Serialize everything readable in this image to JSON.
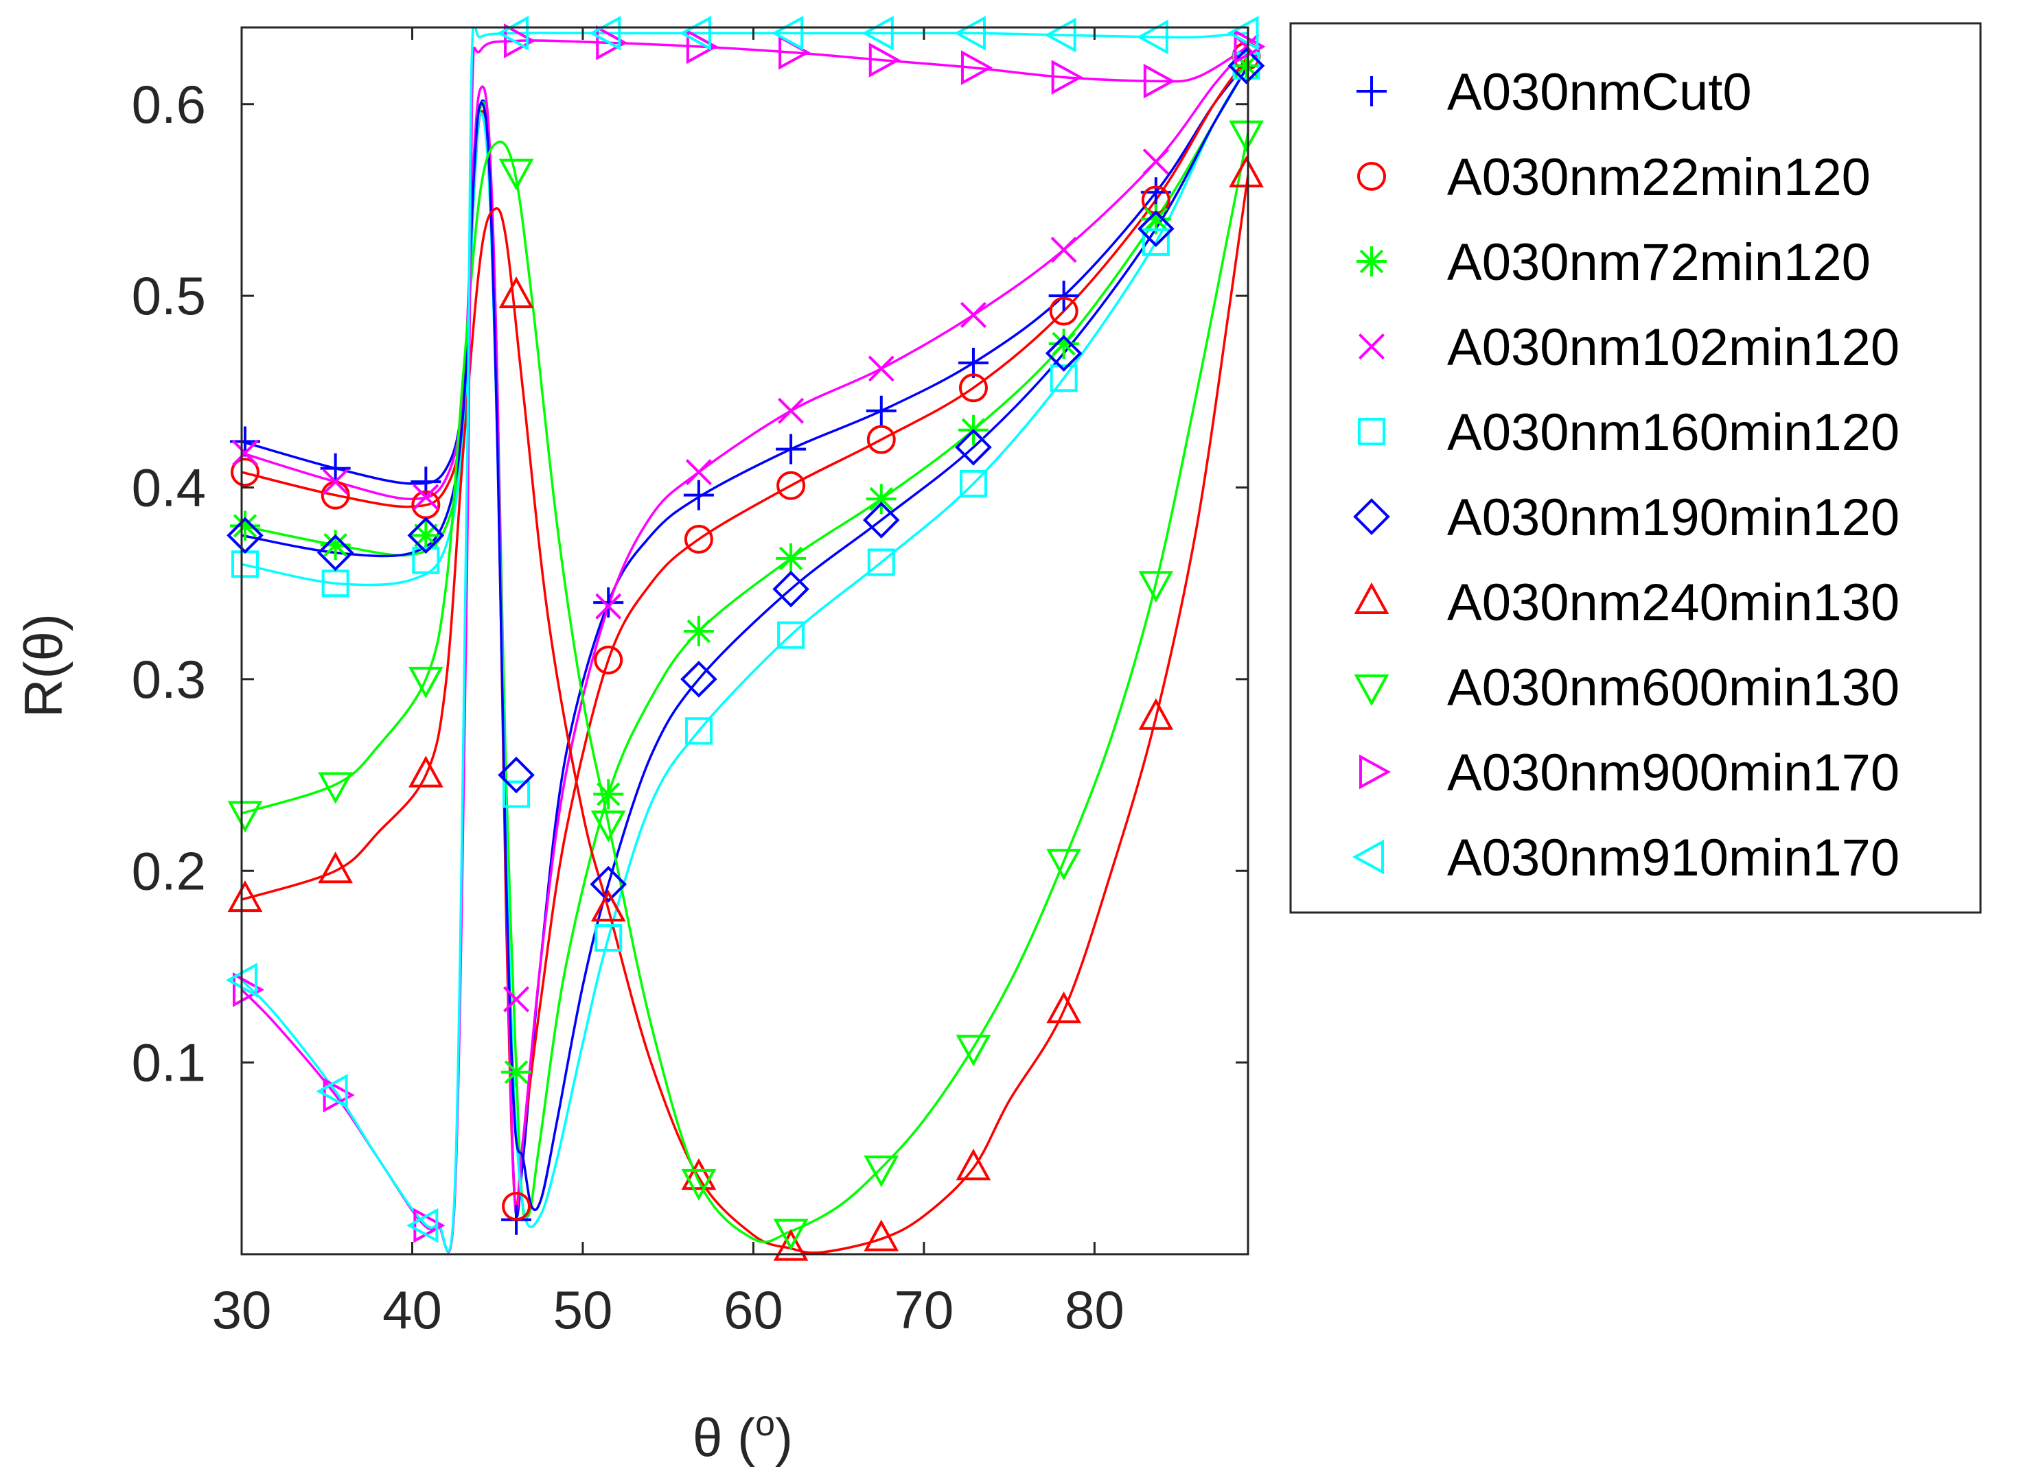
{
  "chart_data": {
    "type": "line",
    "title": "",
    "xlabel": "θ (",
    "xlabel_sup": "o",
    "xlabel_end": ")",
    "ylabel": "R(θ)",
    "xlim": [
      30,
      89
    ],
    "ylim": [
      0,
      0.64
    ],
    "xticks": [
      30,
      40,
      50,
      60,
      70,
      80
    ],
    "yticks": [
      0.1,
      0.2,
      0.3,
      0.4,
      0.5,
      0.6
    ],
    "xtick_labels": [
      "30",
      "40",
      "50",
      "60",
      "70",
      "80"
    ],
    "ytick_labels": [
      "0.1",
      "0.2",
      "0.3",
      "0.4",
      "0.5",
      "0.6"
    ],
    "legend_position": "outside-right",
    "grid": false,
    "marker_x": [
      30.2,
      35.5,
      40.8,
      46.1,
      51.5,
      56.8,
      62.2,
      67.5,
      72.9,
      78.2,
      83.6,
      88.9
    ],
    "series": [
      {
        "name": "A030nmCut0",
        "color": "#0000ff",
        "marker": "plus",
        "markers": [
          0.424,
          0.41,
          0.403,
          0.018,
          0.34,
          0.396,
          0.42,
          0.44,
          0.465,
          0.5,
          0.554,
          0.62
        ],
        "curve": [
          [
            30,
            0.424
          ],
          [
            35.5,
            0.41
          ],
          [
            40,
            0.402
          ],
          [
            42,
            0.41
          ],
          [
            43,
            0.45
          ],
          [
            43.6,
            0.56
          ],
          [
            44,
            0.6
          ],
          [
            44.5,
            0.58
          ],
          [
            45,
            0.45
          ],
          [
            45.5,
            0.2
          ],
          [
            46,
            0.03
          ],
          [
            46.5,
            0.05
          ],
          [
            47.5,
            0.15
          ],
          [
            49,
            0.26
          ],
          [
            51.5,
            0.34
          ],
          [
            54,
            0.375
          ],
          [
            56.8,
            0.395
          ],
          [
            62.2,
            0.42
          ],
          [
            67.5,
            0.44
          ],
          [
            72.9,
            0.465
          ],
          [
            78.2,
            0.5
          ],
          [
            83.6,
            0.554
          ],
          [
            87,
            0.6
          ],
          [
            89,
            0.622
          ]
        ]
      },
      {
        "name": "A030nm22min120",
        "color": "#ff0000",
        "marker": "circle",
        "markers": [
          0.408,
          0.396,
          0.391,
          0.025,
          0.31,
          0.373,
          0.401,
          0.425,
          0.452,
          0.492,
          0.55,
          0.625
        ],
        "curve": [
          [
            30,
            0.408
          ],
          [
            35.5,
            0.396
          ],
          [
            40,
            0.39
          ],
          [
            42,
            0.4
          ],
          [
            43,
            0.44
          ],
          [
            43.6,
            0.55
          ],
          [
            44,
            0.595
          ],
          [
            44.5,
            0.57
          ],
          [
            45,
            0.43
          ],
          [
            45.5,
            0.18
          ],
          [
            46,
            0.03
          ],
          [
            46.5,
            0.06
          ],
          [
            47.5,
            0.13
          ],
          [
            49,
            0.22
          ],
          [
            51.5,
            0.31
          ],
          [
            54,
            0.35
          ],
          [
            56.8,
            0.373
          ],
          [
            62.2,
            0.401
          ],
          [
            67.5,
            0.425
          ],
          [
            72.9,
            0.452
          ],
          [
            78.2,
            0.492
          ],
          [
            83.6,
            0.55
          ],
          [
            87,
            0.6
          ],
          [
            89,
            0.625
          ]
        ]
      },
      {
        "name": "A030nm72min120",
        "color": "#00ff00",
        "marker": "asterisk",
        "markers": [
          0.38,
          0.37,
          0.375,
          0.095,
          0.24,
          0.325,
          0.363,
          0.394,
          0.43,
          0.475,
          0.54,
          0.62
        ],
        "curve": [
          [
            30,
            0.38
          ],
          [
            35.5,
            0.37
          ],
          [
            40,
            0.365
          ],
          [
            42,
            0.38
          ],
          [
            43,
            0.43
          ],
          [
            43.6,
            0.55
          ],
          [
            44,
            0.598
          ],
          [
            44.5,
            0.58
          ],
          [
            45,
            0.45
          ],
          [
            45.5,
            0.25
          ],
          [
            46.3,
            0.05
          ],
          [
            46.8,
            0.02
          ],
          [
            47.5,
            0.06
          ],
          [
            49,
            0.15
          ],
          [
            51.5,
            0.24
          ],
          [
            54,
            0.29
          ],
          [
            56.8,
            0.325
          ],
          [
            62.2,
            0.363
          ],
          [
            67.5,
            0.394
          ],
          [
            72.9,
            0.43
          ],
          [
            78.2,
            0.475
          ],
          [
            83.6,
            0.54
          ],
          [
            87,
            0.59
          ],
          [
            89,
            0.62
          ]
        ]
      },
      {
        "name": "A030nm102min120",
        "color": "#ff00ff",
        "marker": "cross",
        "markers": [
          0.418,
          0.403,
          0.395,
          0.133,
          0.338,
          0.408,
          0.44,
          0.462,
          0.49,
          0.524,
          0.57,
          0.63
        ],
        "curve": [
          [
            30,
            0.418
          ],
          [
            35.5,
            0.403
          ],
          [
            40,
            0.394
          ],
          [
            42,
            0.405
          ],
          [
            43,
            0.45
          ],
          [
            43.6,
            0.57
          ],
          [
            44,
            0.608
          ],
          [
            44.5,
            0.585
          ],
          [
            45,
            0.45
          ],
          [
            45.5,
            0.2
          ],
          [
            46,
            0.03
          ],
          [
            46.5,
            0.06
          ],
          [
            47.5,
            0.15
          ],
          [
            49,
            0.25
          ],
          [
            51.5,
            0.338
          ],
          [
            54,
            0.385
          ],
          [
            56.8,
            0.408
          ],
          [
            62.2,
            0.44
          ],
          [
            67.5,
            0.462
          ],
          [
            72.9,
            0.49
          ],
          [
            78.2,
            0.524
          ],
          [
            83.6,
            0.57
          ],
          [
            87,
            0.61
          ],
          [
            89,
            0.63
          ]
        ]
      },
      {
        "name": "A030nm160min120",
        "color": "#00ffff",
        "marker": "square",
        "markers": [
          0.36,
          0.35,
          0.362,
          0.24,
          0.165,
          0.273,
          0.323,
          0.361,
          0.402,
          0.457,
          0.528,
          0.62
        ],
        "curve": [
          [
            30,
            0.36
          ],
          [
            35.5,
            0.35
          ],
          [
            40,
            0.352
          ],
          [
            42,
            0.37
          ],
          [
            43,
            0.43
          ],
          [
            43.6,
            0.55
          ],
          [
            44,
            0.595
          ],
          [
            44.5,
            0.56
          ],
          [
            45,
            0.42
          ],
          [
            45.5,
            0.22
          ],
          [
            46,
            0.08
          ],
          [
            46.6,
            0.02
          ],
          [
            47.5,
            0.02
          ],
          [
            48.5,
            0.05
          ],
          [
            50,
            0.11
          ],
          [
            51.5,
            0.165
          ],
          [
            54,
            0.235
          ],
          [
            56.8,
            0.273
          ],
          [
            62.2,
            0.323
          ],
          [
            67.5,
            0.361
          ],
          [
            72.9,
            0.402
          ],
          [
            78.2,
            0.457
          ],
          [
            83.6,
            0.528
          ],
          [
            87,
            0.59
          ],
          [
            89,
            0.62
          ]
        ]
      },
      {
        "name": "A030nm190min120",
        "color": "#0000ff",
        "marker": "diamond",
        "markers": [
          0.375,
          0.366,
          0.375,
          0.25,
          0.193,
          0.3,
          0.347,
          0.383,
          0.421,
          0.47,
          0.535,
          0.62
        ],
        "curve": [
          [
            30,
            0.375
          ],
          [
            35.5,
            0.366
          ],
          [
            40,
            0.366
          ],
          [
            42,
            0.385
          ],
          [
            43,
            0.44
          ],
          [
            43.6,
            0.56
          ],
          [
            44,
            0.6
          ],
          [
            44.5,
            0.57
          ],
          [
            45,
            0.42
          ],
          [
            45.5,
            0.2
          ],
          [
            46,
            0.07
          ],
          [
            46.5,
            0.05
          ],
          [
            47,
            0.025
          ],
          [
            47.6,
            0.03
          ],
          [
            48.5,
            0.07
          ],
          [
            50,
            0.14
          ],
          [
            51.5,
            0.193
          ],
          [
            54,
            0.26
          ],
          [
            56.8,
            0.3
          ],
          [
            62.2,
            0.347
          ],
          [
            67.5,
            0.383
          ],
          [
            72.9,
            0.421
          ],
          [
            78.2,
            0.47
          ],
          [
            83.6,
            0.535
          ],
          [
            87,
            0.59
          ],
          [
            89,
            0.62
          ]
        ]
      },
      {
        "name": "A030nm240min130",
        "color": "#ff0000",
        "marker": "triangle-up",
        "markers": [
          0.185,
          0.2,
          0.25,
          0.5,
          0.18,
          0.04,
          0.003,
          0.008,
          0.045,
          0.127,
          0.28,
          0.563
        ],
        "curve": [
          [
            30,
            0.185
          ],
          [
            35.5,
            0.2
          ],
          [
            38,
            0.22
          ],
          [
            40.8,
            0.25
          ],
          [
            42,
            0.3
          ],
          [
            43,
            0.42
          ],
          [
            44,
            0.52
          ],
          [
            44.8,
            0.545
          ],
          [
            45.5,
            0.53
          ],
          [
            46.5,
            0.45
          ],
          [
            48,
            0.33
          ],
          [
            50,
            0.23
          ],
          [
            51.5,
            0.18
          ],
          [
            54,
            0.1
          ],
          [
            56.8,
            0.04
          ],
          [
            60,
            0.01
          ],
          [
            62.2,
            0.003
          ],
          [
            64,
            0.001
          ],
          [
            67.5,
            0.008
          ],
          [
            70,
            0.02
          ],
          [
            72.9,
            0.045
          ],
          [
            75,
            0.08
          ],
          [
            78.2,
            0.127
          ],
          [
            81,
            0.2
          ],
          [
            83.6,
            0.28
          ],
          [
            86,
            0.38
          ],
          [
            88,
            0.5
          ],
          [
            89,
            0.563
          ]
        ]
      },
      {
        "name": "A030nm600min130",
        "color": "#00ff00",
        "marker": "triangle-down",
        "markers": [
          0.23,
          0.245,
          0.3,
          0.565,
          0.225,
          0.038,
          0.012,
          0.045,
          0.108,
          0.205,
          0.35,
          0.585
        ],
        "curve": [
          [
            30,
            0.23
          ],
          [
            35.5,
            0.245
          ],
          [
            38,
            0.265
          ],
          [
            40.8,
            0.3
          ],
          [
            42,
            0.35
          ],
          [
            43,
            0.46
          ],
          [
            44,
            0.555
          ],
          [
            45,
            0.58
          ],
          [
            46,
            0.565
          ],
          [
            47,
            0.5
          ],
          [
            48.5,
            0.38
          ],
          [
            50,
            0.29
          ],
          [
            51.5,
            0.225
          ],
          [
            54,
            0.12
          ],
          [
            56.8,
            0.038
          ],
          [
            60,
            0.008
          ],
          [
            62.2,
            0.012
          ],
          [
            65,
            0.025
          ],
          [
            67.5,
            0.045
          ],
          [
            70,
            0.07
          ],
          [
            72.9,
            0.108
          ],
          [
            75.5,
            0.15
          ],
          [
            78.2,
            0.205
          ],
          [
            81,
            0.27
          ],
          [
            83.6,
            0.35
          ],
          [
            86,
            0.45
          ],
          [
            88,
            0.54
          ],
          [
            89,
            0.585
          ]
        ]
      },
      {
        "name": "A030nm900min170",
        "color": "#ff00ff",
        "marker": "triangle-right",
        "markers": [
          0.138,
          0.083,
          0.015,
          0.633,
          0.632,
          0.63,
          0.627,
          0.623,
          0.619,
          0.614,
          0.612,
          0.63
        ],
        "curve": [
          [
            30,
            0.138
          ],
          [
            32,
            0.12
          ],
          [
            35.5,
            0.083
          ],
          [
            38,
            0.05
          ],
          [
            40.5,
            0.017
          ],
          [
            41.5,
            0.015
          ],
          [
            42.5,
            0.03
          ],
          [
            43.2,
            0.35
          ],
          [
            43.5,
            0.6
          ],
          [
            44,
            0.628
          ],
          [
            46.1,
            0.633
          ],
          [
            51.5,
            0.632
          ],
          [
            56.8,
            0.63
          ],
          [
            62.2,
            0.627
          ],
          [
            67.5,
            0.623
          ],
          [
            72.9,
            0.619
          ],
          [
            78.2,
            0.614
          ],
          [
            83.6,
            0.612
          ],
          [
            86,
            0.614
          ],
          [
            89,
            0.63
          ]
        ]
      },
      {
        "name": "A030nm910min170",
        "color": "#00ffff",
        "marker": "triangle-left",
        "markers": [
          0.143,
          0.085,
          0.015,
          0.637,
          0.637,
          0.637,
          0.637,
          0.637,
          0.637,
          0.636,
          0.635,
          0.637
        ],
        "curve": [
          [
            30,
            0.143
          ],
          [
            32,
            0.125
          ],
          [
            35.5,
            0.085
          ],
          [
            38,
            0.05
          ],
          [
            40.5,
            0.018
          ],
          [
            41.5,
            0.016
          ],
          [
            42.5,
            0.035
          ],
          [
            43.2,
            0.4
          ],
          [
            43.5,
            0.625
          ],
          [
            44,
            0.635
          ],
          [
            46.1,
            0.637
          ],
          [
            51.5,
            0.637
          ],
          [
            56.8,
            0.637
          ],
          [
            62.2,
            0.637
          ],
          [
            67.5,
            0.637
          ],
          [
            72.9,
            0.637
          ],
          [
            78.2,
            0.636
          ],
          [
            83.6,
            0.635
          ],
          [
            86,
            0.635
          ],
          [
            89,
            0.637
          ]
        ]
      }
    ]
  }
}
